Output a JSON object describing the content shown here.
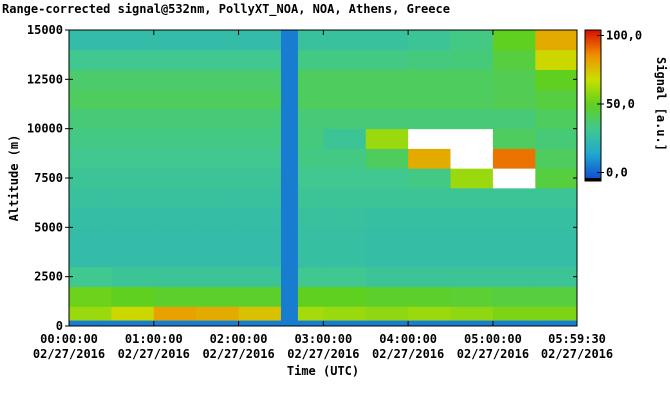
{
  "chart_data": {
    "type": "heatmap",
    "title": "Range-corrected signal@532nm, PollyXT_NOA, NOA, Athens, Greece",
    "xlabel": "Time (UTC)",
    "ylabel": "Altitude (m)",
    "colorbar_label": "Signal [a.u.]",
    "x": [
      0,
      0.5,
      1,
      1.5,
      2,
      2.5,
      2.7,
      3,
      3.5,
      4,
      4.5,
      5,
      5.5,
      5.99167
    ],
    "y": [
      0,
      300,
      1000,
      2000,
      3000,
      4000,
      5000,
      6000,
      7000,
      8000,
      9000,
      10000,
      11000,
      12000,
      13000,
      14000,
      15000
    ],
    "z": [
      [
        5,
        5,
        5,
        5,
        5,
        5,
        5,
        5,
        5,
        5,
        5,
        5,
        5
      ],
      [
        60,
        70,
        82,
        80,
        75,
        5,
        62,
        60,
        58,
        60,
        58,
        55,
        55
      ],
      [
        52,
        50,
        48,
        48,
        48,
        5,
        50,
        50,
        48,
        48,
        47,
        45,
        45
      ],
      [
        32,
        30,
        30,
        30,
        30,
        5,
        32,
        32,
        30,
        30,
        30,
        30,
        30
      ],
      [
        25,
        25,
        25,
        25,
        25,
        5,
        27,
        27,
        26,
        26,
        26,
        26,
        26
      ],
      [
        25,
        25,
        25,
        25,
        25,
        5,
        27,
        27,
        26,
        26,
        26,
        26,
        26
      ],
      [
        26,
        26,
        26,
        26,
        26,
        5,
        28,
        28,
        27,
        27,
        27,
        27,
        27
      ],
      [
        28,
        28,
        28,
        28,
        28,
        5,
        30,
        30,
        30,
        30,
        30,
        30,
        30
      ],
      [
        30,
        30,
        30,
        30,
        30,
        5,
        32,
        32,
        32,
        34,
        60,
        110,
        45
      ],
      [
        32,
        32,
        32,
        32,
        32,
        5,
        34,
        34,
        40,
        80,
        110,
        90,
        40
      ],
      [
        34,
        34,
        34,
        34,
        34,
        5,
        35,
        30,
        60,
        110,
        110,
        40,
        36
      ],
      [
        36,
        36,
        36,
        36,
        36,
        5,
        36,
        36,
        36,
        36,
        36,
        36,
        40
      ],
      [
        40,
        40,
        40,
        40,
        40,
        5,
        40,
        40,
        40,
        40,
        40,
        42,
        45
      ],
      [
        38,
        38,
        38,
        38,
        38,
        5,
        40,
        40,
        40,
        40,
        40,
        42,
        50
      ],
      [
        32,
        32,
        32,
        32,
        32,
        5,
        34,
        34,
        34,
        35,
        36,
        45,
        70
      ],
      [
        25,
        25,
        25,
        25,
        25,
        5,
        28,
        28,
        28,
        30,
        34,
        50,
        80
      ]
    ],
    "xlim": [
      0,
      5.99167
    ],
    "xticks": [
      {
        "value": 0,
        "label": "00:00:00",
        "date": "02/27/2016"
      },
      {
        "value": 1,
        "label": "01:00:00",
        "date": "02/27/2016"
      },
      {
        "value": 2,
        "label": "02:00:00",
        "date": "02/27/2016"
      },
      {
        "value": 3,
        "label": "03:00:00",
        "date": "02/27/2016"
      },
      {
        "value": 4,
        "label": "04:00:00",
        "date": "02/27/2016"
      },
      {
        "value": 5,
        "label": "05:00:00",
        "date": "02/27/2016"
      },
      {
        "value": 5.99167,
        "label": "05:59:30",
        "date": "02/27/2016"
      }
    ],
    "ylim": [
      0,
      15000
    ],
    "yticks": [
      0,
      2500,
      5000,
      7500,
      10000,
      12500,
      15000
    ],
    "clim": [
      -4,
      104
    ],
    "cticks": [
      {
        "value": 0,
        "label": "0,0"
      },
      {
        "value": 50,
        "label": "50,0"
      },
      {
        "value": 100,
        "label": "100,0"
      }
    ],
    "colormap": [
      "#1050d0",
      "#20a8d0",
      "#40c890",
      "#60d020",
      "#c8e000",
      "#f09000",
      "#d81000"
    ],
    "under_color": "#000000",
    "over_color": "#ffffff"
  }
}
